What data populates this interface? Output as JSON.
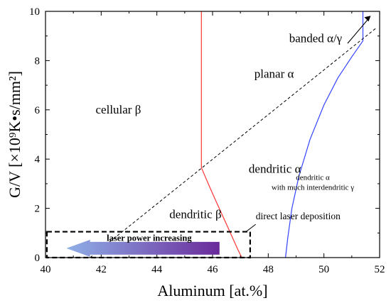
{
  "chart_data": {
    "type": "line",
    "title": "",
    "xlabel": "Aluminum [at.%]",
    "ylabel": "G/V [×10⁹K•s/mm²]",
    "xlim": [
      40,
      52
    ],
    "ylim": [
      0,
      10
    ],
    "xticks": [
      "40",
      "42",
      "44",
      "46",
      "48",
      "50",
      "52"
    ],
    "yticks": [
      "0",
      "2",
      "4",
      "6",
      "8",
      "10"
    ],
    "grid": false,
    "series": [
      {
        "color": "#ff3333",
        "style": "solid",
        "x": [
          45.6,
          45.6,
          45.75,
          46.0,
          46.3,
          46.6,
          46.9,
          47.05
        ],
        "y": [
          10.0,
          3.65,
          3.25,
          2.6,
          1.85,
          1.1,
          0.35,
          0.0
        ]
      },
      {
        "color": "#3344ff",
        "style": "solid",
        "x": [
          48.62,
          48.7,
          48.85,
          49.1,
          49.5,
          50.0,
          50.5,
          51.0,
          51.4,
          51.4
        ],
        "y": [
          0.0,
          0.8,
          2.0,
          3.3,
          4.8,
          6.2,
          7.3,
          8.15,
          8.8,
          10.0
        ]
      },
      {
        "color": "#000000",
        "style": "dashed",
        "x": [
          41.6,
          51.85
        ],
        "y": [
          0.0,
          9.3
        ]
      }
    ],
    "region_labels": [
      {
        "text": "cellular β",
        "x": 41.8,
        "y": 5.85
      },
      {
        "text": "planar α",
        "x": 47.5,
        "y": 7.3
      },
      {
        "text": "dendritic α",
        "x": 47.3,
        "y": 3.45
      },
      {
        "text": "dendritic β",
        "x": 44.45,
        "y": 1.6
      },
      {
        "text": "banded α/γ",
        "x": 48.75,
        "y": 8.75
      }
    ],
    "small_labels": [
      {
        "text": "dendritic α",
        "x": 49.6,
        "y": 3.15
      },
      {
        "text": "with much interdendritic γ",
        "x": 49.6,
        "y": 2.75
      }
    ],
    "annotations": {
      "dld_label": "direct laser deposition",
      "dld_box": {
        "x0": 40.05,
        "x1": 47.35,
        "y0": 0.0,
        "y1": 1.05
      },
      "power_label": "laser power increasing",
      "power_color": "#8b2a12",
      "arrow_start_color": "#8fb0e8",
      "arrow_end_color": "#6a2a9a"
    }
  }
}
